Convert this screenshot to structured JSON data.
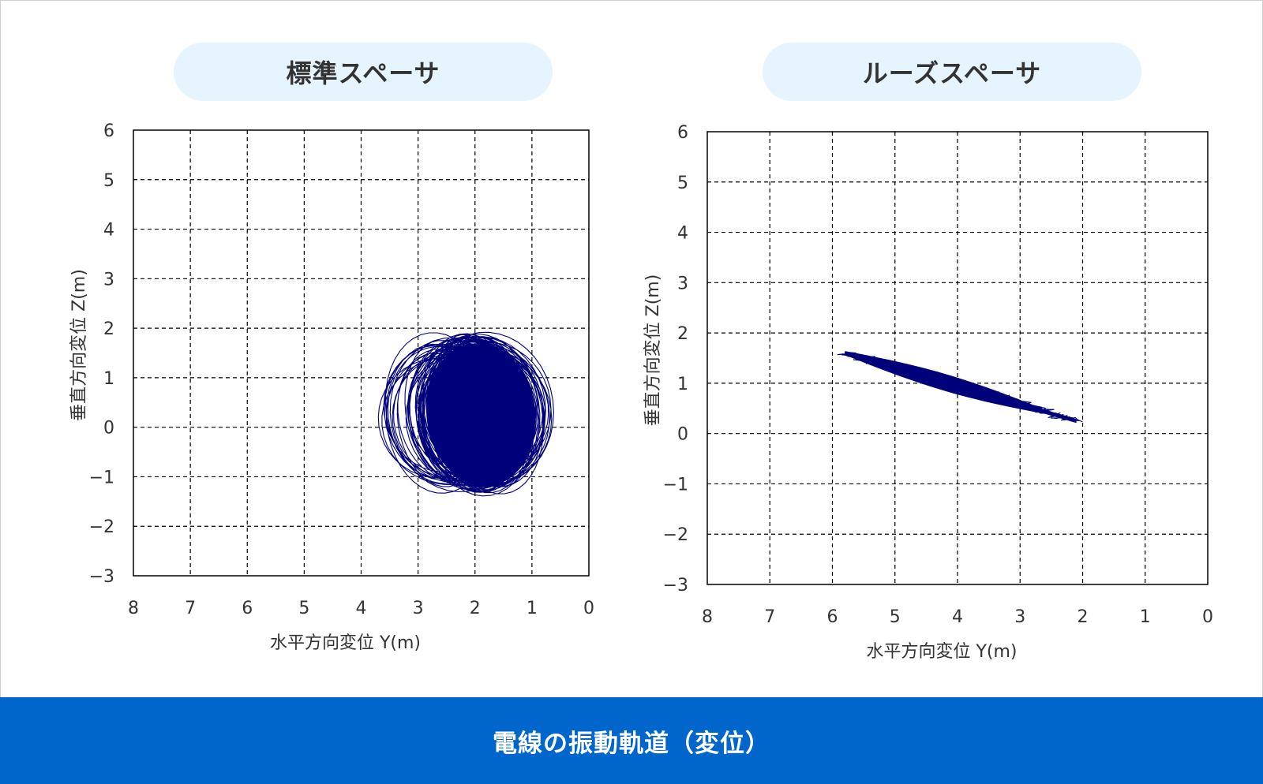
{
  "footer_caption": "電線の振動軌道（変位）",
  "colors": {
    "trace": "#00007a",
    "pill_bg": "#e6f4fd",
    "footer_bg": "#0066cc"
  },
  "chart_data": [
    {
      "type": "scatter",
      "title": "標準スペーサ",
      "xlabel": "水平方向変位 Y(m)",
      "ylabel": "垂直方向変位 Z(m)",
      "xlim": [
        8,
        0
      ],
      "ylim": [
        -3,
        6
      ],
      "x_reversed": true,
      "xticks": [
        "8",
        "7",
        "6",
        "5",
        "4",
        "3",
        "2",
        "1",
        "0"
      ],
      "yticks": [
        "6",
        "5",
        "4",
        "3",
        "2",
        "1",
        "0",
        "−1",
        "−2",
        "−3"
      ],
      "grid": true,
      "trajectory": {
        "shape": "elliptical cloud",
        "center": [
          1.9,
          0.25
        ],
        "y_range": [
          0.7,
          3.6
        ],
        "z_range": [
          -1.3,
          1.8
        ]
      }
    },
    {
      "type": "scatter",
      "title": "ルーズスペーサ",
      "xlabel": "水平方向変位 Y(m)",
      "ylabel": "垂直方向変位 Z(m)",
      "xlim": [
        8,
        0
      ],
      "ylim": [
        -3,
        6
      ],
      "x_reversed": true,
      "xticks": [
        "8",
        "7",
        "6",
        "5",
        "4",
        "3",
        "2",
        "1",
        "0"
      ],
      "yticks": [
        "6",
        "5",
        "4",
        "3",
        "2",
        "1",
        "0",
        "−1",
        "−2",
        "−3"
      ],
      "grid": true,
      "trajectory": {
        "shape": "diagonal band",
        "start": [
          5.8,
          1.6
        ],
        "end": [
          2.1,
          0.25
        ]
      }
    }
  ]
}
